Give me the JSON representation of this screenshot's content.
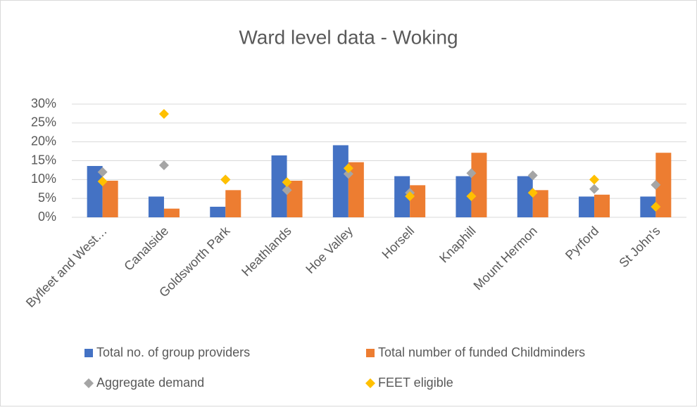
{
  "chart_data": {
    "type": "bar",
    "title": "Ward level data - Woking",
    "categories": [
      "Byfleet and West…",
      "Canalside",
      "Goldsworth Park",
      "Heathlands",
      "Hoe Valley",
      "Horsell",
      "Knaphill",
      "Mount Hermon",
      "Pyrford",
      "St John's"
    ],
    "series": [
      {
        "name": "Total no. of group providers",
        "color": "#4472c4",
        "type": "bar",
        "values": [
          13.6,
          5.5,
          2.8,
          16.4,
          19.1,
          10.9,
          10.9,
          10.9,
          5.5,
          5.5
        ]
      },
      {
        "name": "Total number of funded Childminders",
        "color": "#ed7d31",
        "type": "bar",
        "values": [
          9.7,
          2.3,
          7.2,
          9.7,
          14.6,
          8.5,
          17.1,
          7.2,
          6.0,
          17.1
        ]
      },
      {
        "name": "Aggregate demand",
        "color": "#a5a5a5",
        "type": "scatter",
        "values": [
          12.0,
          13.8,
          10.0,
          7.2,
          11.5,
          6.5,
          11.7,
          11.1,
          7.5,
          8.6
        ]
      },
      {
        "name": "FEET eligible",
        "color": "#ffc000",
        "type": "scatter",
        "values": [
          9.5,
          27.4,
          10.0,
          9.3,
          13.0,
          5.6,
          5.6,
          6.5,
          10.0,
          2.8
        ]
      }
    ],
    "ylim": [
      0,
      30
    ],
    "yticks": [
      {
        "value": 0,
        "label": "0%"
      },
      {
        "value": 5,
        "label": "5%"
      },
      {
        "value": 10,
        "label": "10%"
      },
      {
        "value": 15,
        "label": "15%"
      },
      {
        "value": 20,
        "label": "20%"
      },
      {
        "value": 25,
        "label": "25%"
      },
      {
        "value": 30,
        "label": "30%"
      }
    ],
    "grid": true,
    "legend": "bottom"
  }
}
